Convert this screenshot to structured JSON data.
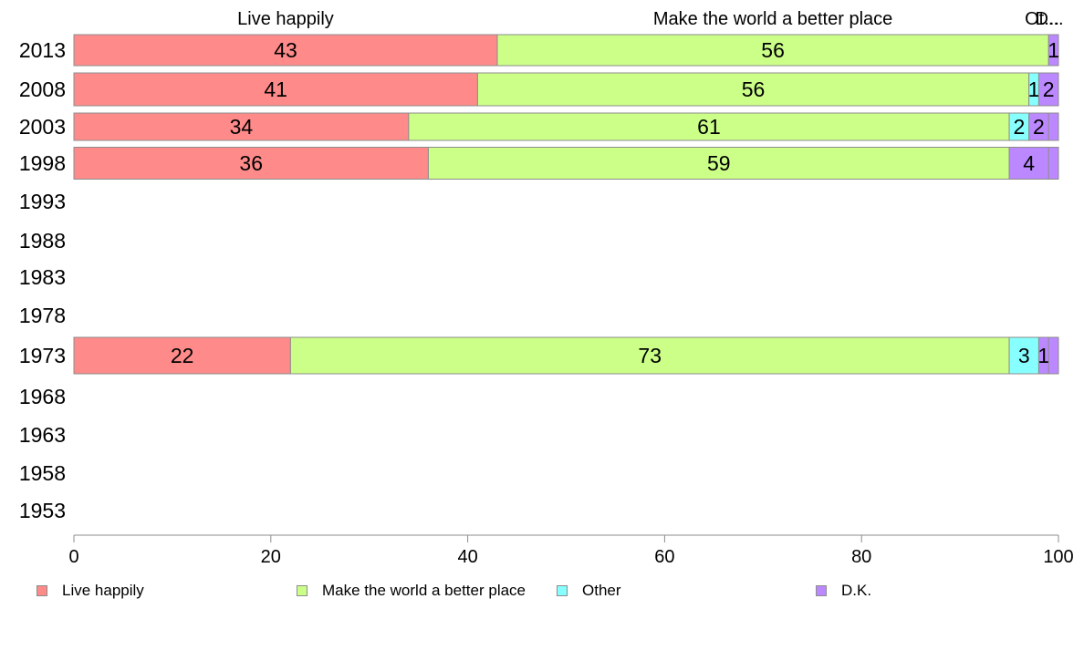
{
  "chart_data": {
    "type": "bar",
    "orientation": "horizontal",
    "stacked": true,
    "categories": [
      "2013",
      "2008",
      "2003",
      "1998",
      "1993",
      "1988",
      "1983",
      "1978",
      "1973",
      "1968",
      "1963",
      "1958",
      "1953"
    ],
    "series": [
      {
        "name": "Live happily",
        "color": "#ff8a8a",
        "values": [
          43,
          41,
          34,
          36,
          null,
          null,
          null,
          null,
          22,
          null,
          null,
          null,
          null
        ]
      },
      {
        "name": "Make the world a better place",
        "color": "#ccff88",
        "values": [
          56,
          56,
          61,
          59,
          null,
          null,
          null,
          null,
          73,
          null,
          null,
          null,
          null
        ]
      },
      {
        "name": "Other",
        "color": "#88ffff",
        "values": [
          0,
          1,
          2,
          0,
          null,
          null,
          null,
          null,
          3,
          null,
          null,
          null,
          null
        ]
      },
      {
        "name": "D.K.",
        "color": "#bb88ff",
        "values": [
          1,
          2,
          2,
          4,
          null,
          null,
          null,
          null,
          1,
          null,
          null,
          null,
          null
        ]
      }
    ],
    "top_labels": [
      "Live happily",
      "Make the world a better place",
      "Ot...",
      "D..."
    ],
    "xlim": [
      0,
      100
    ],
    "xticks": [
      0,
      20,
      40,
      60,
      80,
      100
    ],
    "title": "",
    "xlabel": "",
    "ylabel": "",
    "grid": false,
    "legend_position": "bottom"
  },
  "legend": {
    "items": [
      {
        "label": "Live happily",
        "color": "#ff8a8a"
      },
      {
        "label": "Make the world a better place",
        "color": "#ccff88"
      },
      {
        "label": "Other",
        "color": "#88ffff"
      },
      {
        "label": "D.K.",
        "color": "#bb88ff"
      }
    ]
  }
}
